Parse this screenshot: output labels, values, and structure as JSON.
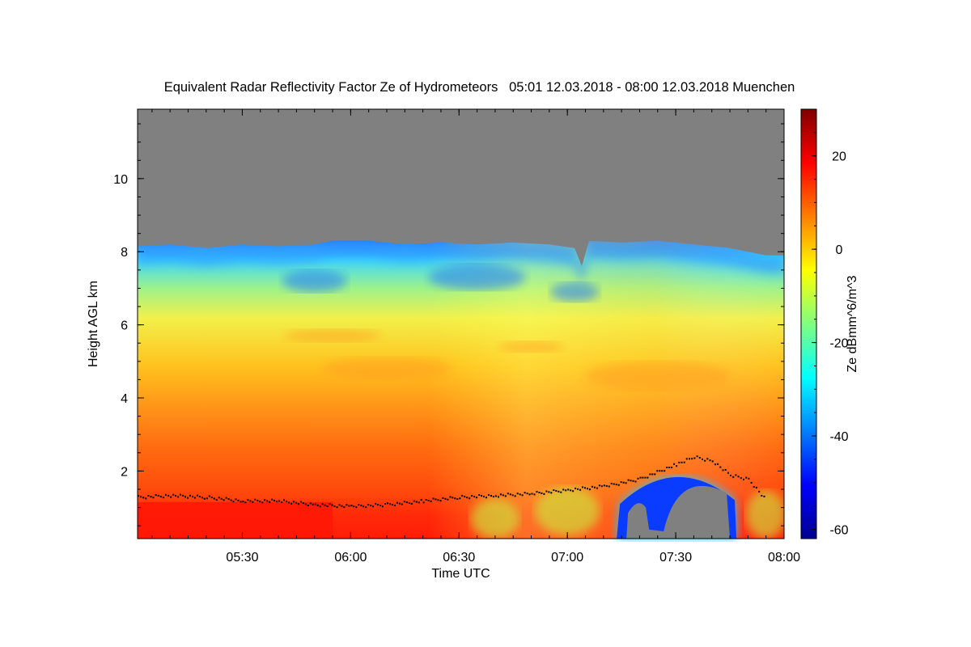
{
  "chart_data": {
    "type": "heatmap",
    "title": "Equivalent Radar Reflectivity Factor Ze of Hydrometeors   05:01 12.03.2018 - 08:00 12.03.2018 Muenchen",
    "xlabel": "Time UTC",
    "ylabel": "Height AGL km",
    "colorbar_label": "Ze dBmm^6/m^3",
    "xlim": [
      "05:01",
      "08:00"
    ],
    "x_ticks": [
      "05:30",
      "06:00",
      "06:30",
      "07:00",
      "07:30",
      "08:00"
    ],
    "ylim": [
      0.15,
      11.9
    ],
    "y_ticks": [
      2,
      4,
      6,
      8,
      10
    ],
    "colorbar_range": [
      -62,
      30
    ],
    "colorbar_ticks": [
      20,
      0,
      -20,
      -40,
      -60
    ],
    "colormap": "jet",
    "no_signal_color": "#808080",
    "echo_top": [
      {
        "t": "05:01",
        "h": 8.15
      },
      {
        "t": "05:10",
        "h": 8.2
      },
      {
        "t": "05:20",
        "h": 8.1
      },
      {
        "t": "05:30",
        "h": 8.2
      },
      {
        "t": "05:40",
        "h": 8.15
      },
      {
        "t": "05:50",
        "h": 8.2
      },
      {
        "t": "05:55",
        "h": 8.3
      },
      {
        "t": "06:05",
        "h": 8.3
      },
      {
        "t": "06:15",
        "h": 8.2
      },
      {
        "t": "06:25",
        "h": 8.25
      },
      {
        "t": "06:35",
        "h": 8.2
      },
      {
        "t": "06:45",
        "h": 8.25
      },
      {
        "t": "06:55",
        "h": 8.2
      },
      {
        "t": "07:02",
        "h": 8.1
      },
      {
        "t": "07:04",
        "h": 7.6
      },
      {
        "t": "07:06",
        "h": 8.3
      },
      {
        "t": "07:15",
        "h": 8.25
      },
      {
        "t": "07:25",
        "h": 8.3
      },
      {
        "t": "07:35",
        "h": 8.2
      },
      {
        "t": "07:45",
        "h": 8.1
      },
      {
        "t": "07:55",
        "h": 7.9
      },
      {
        "t": "08:00",
        "h": 7.9
      }
    ],
    "cloud_base": [
      {
        "t": "05:01",
        "h": 1.3
      },
      {
        "t": "05:10",
        "h": 1.35
      },
      {
        "t": "05:20",
        "h": 1.3
      },
      {
        "t": "05:30",
        "h": 1.2
      },
      {
        "t": "05:40",
        "h": 1.2
      },
      {
        "t": "05:50",
        "h": 1.1
      },
      {
        "t": "06:00",
        "h": 1.05
      },
      {
        "t": "06:10",
        "h": 1.1
      },
      {
        "t": "06:20",
        "h": 1.2
      },
      {
        "t": "06:30",
        "h": 1.3
      },
      {
        "t": "06:40",
        "h": 1.35
      },
      {
        "t": "06:50",
        "h": 1.4
      },
      {
        "t": "07:00",
        "h": 1.5
      },
      {
        "t": "07:10",
        "h": 1.6
      },
      {
        "t": "07:20",
        "h": 1.8
      },
      {
        "t": "07:30",
        "h": 2.2
      },
      {
        "t": "07:35",
        "h": 2.4
      },
      {
        "t": "07:40",
        "h": 2.3
      },
      {
        "t": "07:45",
        "h": 1.9
      },
      {
        "t": "07:50",
        "h": 1.8
      },
      {
        "t": "07:55",
        "h": 1.2
      }
    ],
    "precip_gap": {
      "t_start": "07:15",
      "t_end": "07:45",
      "top_h": 1.9
    }
  }
}
